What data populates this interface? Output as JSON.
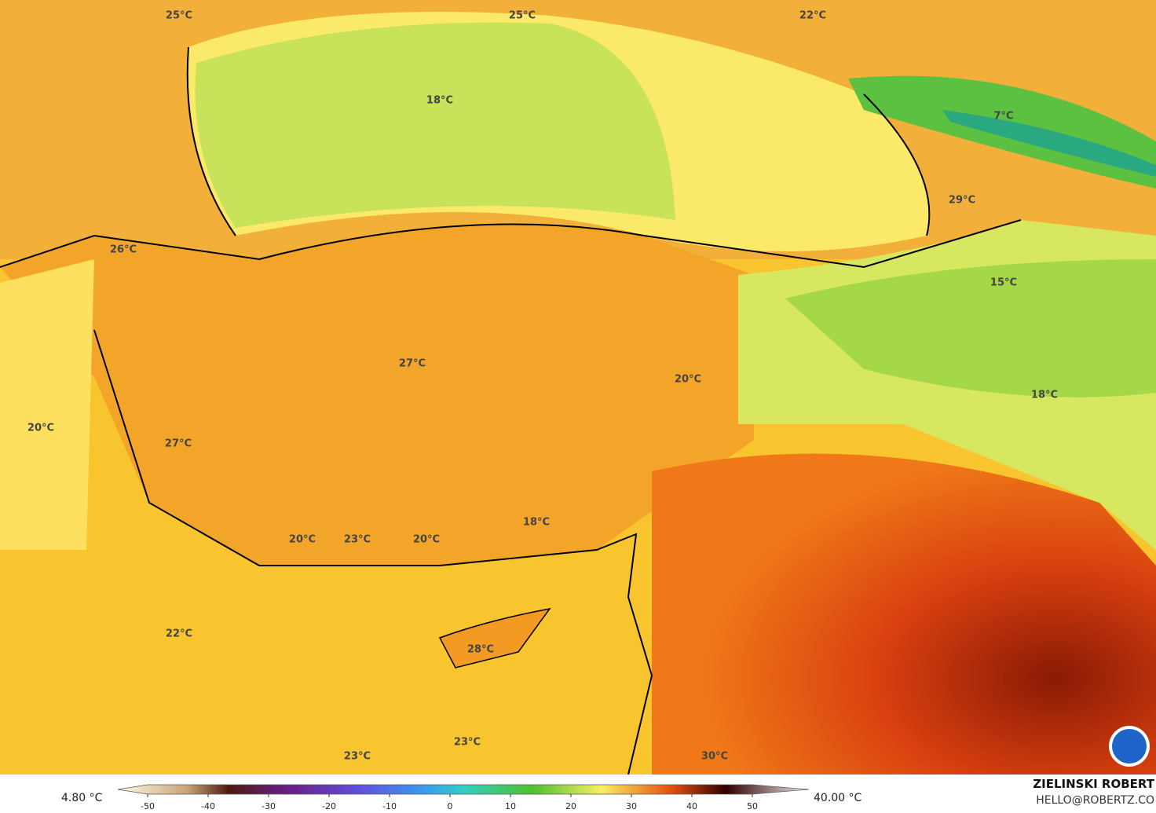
{
  "map": {
    "labels": [
      "25°C",
      "25°C",
      "22°C",
      "18°C",
      "7°C",
      "29°C",
      "26°C",
      "15°C",
      "27°C",
      "20°C",
      "18°C",
      "20°C",
      "27°C",
      "18°C",
      "20°C",
      "23°C",
      "20°C",
      "22°C",
      "28°C",
      "23°C",
      "23°C",
      "30°C"
    ],
    "colorbar": {
      "min_label": "4.80 °C",
      "max_label": "40.00 °C",
      "ticks": [
        -50,
        -40,
        -30,
        -20,
        -10,
        0,
        10,
        20,
        30,
        40,
        50
      ]
    },
    "credit": {
      "name": "ZIELINSKI ROBERT",
      "email": "HELLO@ROBERTZ.CO"
    }
  }
}
